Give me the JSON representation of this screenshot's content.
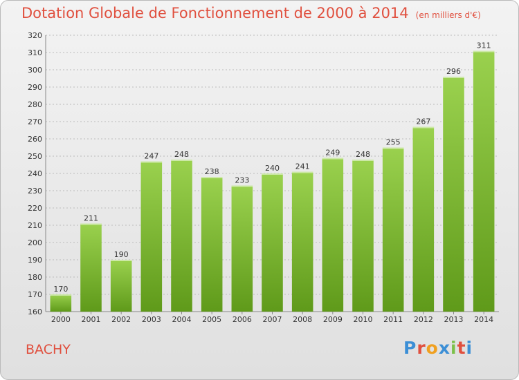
{
  "header": {
    "title": "Dotation Globale de Fonctionnement de 2000 à 2014",
    "unit": "(en milliers d'€)"
  },
  "footer": {
    "commune": "BACHY",
    "logo_letters": [
      "P",
      "r",
      "o",
      "x",
      "i",
      "t",
      "i"
    ],
    "logo_colors": [
      "#3c8fd6",
      "#e0503f",
      "#f0a020",
      "#3c8fd6",
      "#7cc04a",
      "#e0503f",
      "#3c8fd6"
    ]
  },
  "colors": {
    "bar_top": "#9ad14e",
    "bar_bottom": "#5f9a1a",
    "grid": "#bbbbbb"
  },
  "chart_data": {
    "type": "bar",
    "title": "Dotation Globale de Fonctionnement de 2000 à 2014",
    "categories": [
      "2000",
      "2001",
      "2002",
      "2003",
      "2004",
      "2005",
      "2006",
      "2007",
      "2008",
      "2009",
      "2010",
      "2011",
      "2012",
      "2013",
      "2014"
    ],
    "values": [
      170,
      211,
      190,
      247,
      248,
      238,
      233,
      240,
      241,
      249,
      248,
      255,
      267,
      296,
      311
    ],
    "ylim": [
      160,
      320
    ],
    "yticks": [
      160,
      170,
      180,
      190,
      200,
      210,
      220,
      230,
      240,
      250,
      260,
      270,
      280,
      290,
      300,
      310,
      320
    ],
    "grid": true
  }
}
